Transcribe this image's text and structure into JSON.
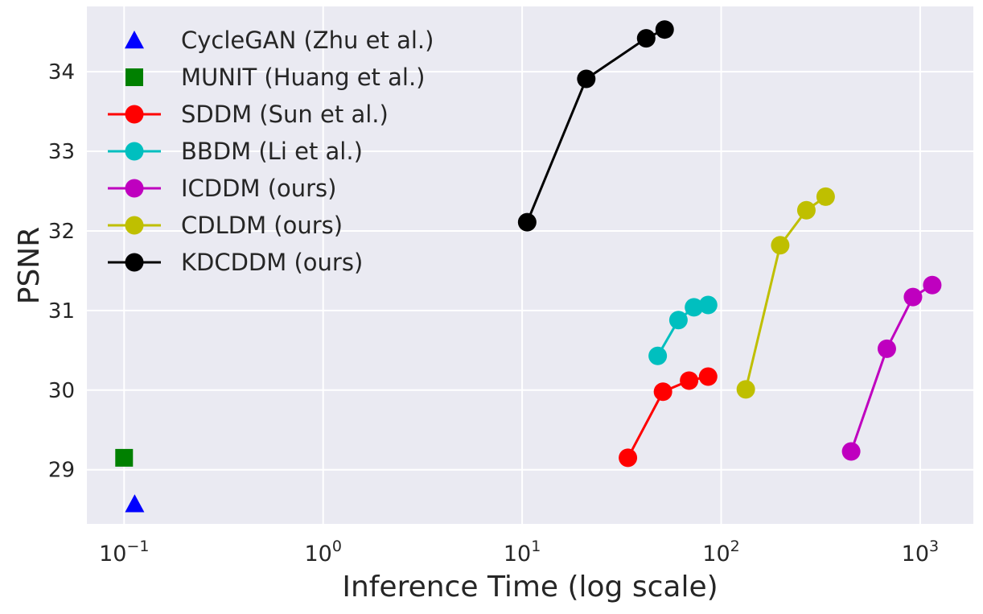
{
  "chart_data": {
    "type": "scatter",
    "xlabel": "Inference Time (log scale)",
    "ylabel": "PSNR",
    "x_scale": "log",
    "xlim": [
      0.065,
      1850
    ],
    "ylim": [
      28.32,
      34.82
    ],
    "x_ticks": [
      {
        "value": 0.1,
        "base": "10",
        "exp": "−1"
      },
      {
        "value": 1,
        "base": "10",
        "exp": "0"
      },
      {
        "value": 10,
        "base": "10",
        "exp": "1"
      },
      {
        "value": 100,
        "base": "10",
        "exp": "2"
      },
      {
        "value": 1000,
        "base": "10",
        "exp": "3"
      }
    ],
    "y_ticks": [
      29,
      30,
      31,
      32,
      33,
      34
    ],
    "grid": true,
    "legend_position": "upper-left",
    "colors": {
      "background": "#eaeaf2",
      "grid": "#ffffff"
    },
    "series": [
      {
        "name": "CycleGAN (Zhu et al.)",
        "color": "#0000ff",
        "marker": "triangle",
        "line": false,
        "points": [
          [
            0.113,
            28.57
          ]
        ]
      },
      {
        "name": "MUNIT (Huang et al.)",
        "color": "#008000",
        "marker": "square",
        "line": false,
        "points": [
          [
            0.1,
            29.15
          ]
        ]
      },
      {
        "name": "SDDM (Sun et al.)",
        "color": "#ff0000",
        "marker": "circle",
        "line": true,
        "points": [
          [
            34,
            29.15
          ],
          [
            51,
            29.98
          ],
          [
            69,
            30.12
          ],
          [
            86,
            30.17
          ]
        ]
      },
      {
        "name": "BBDM (Li et al.)",
        "color": "#00bfbf",
        "marker": "circle",
        "line": true,
        "points": [
          [
            48,
            30.43
          ],
          [
            61,
            30.88
          ],
          [
            73,
            31.04
          ],
          [
            86,
            31.07
          ]
        ]
      },
      {
        "name": "ICDDM (ours)",
        "color": "#bf00bf",
        "marker": "circle",
        "line": true,
        "points": [
          [
            450,
            29.23
          ],
          [
            680,
            30.52
          ],
          [
            920,
            31.17
          ],
          [
            1150,
            31.32
          ]
        ]
      },
      {
        "name": "CDLDM (ours)",
        "color": "#bfbf00",
        "marker": "circle",
        "line": true,
        "points": [
          [
            133,
            30.01
          ],
          [
            198,
            31.82
          ],
          [
            268,
            32.26
          ],
          [
            335,
            32.43
          ]
        ]
      },
      {
        "name": "KDCDDM (ours)",
        "color": "#000000",
        "marker": "circle",
        "line": true,
        "points": [
          [
            10.6,
            32.11
          ],
          [
            21,
            33.91
          ],
          [
            42,
            34.42
          ],
          [
            52,
            34.53
          ]
        ]
      }
    ]
  }
}
